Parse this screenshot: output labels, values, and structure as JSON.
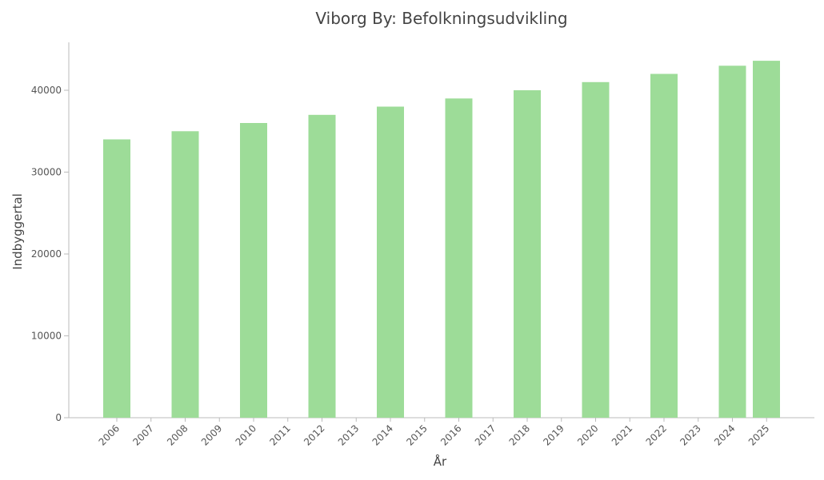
{
  "chart_data": {
    "type": "bar",
    "title": "Viborg By: Befolkningsudvikling",
    "xlabel": "År",
    "ylabel": "Indbyggertal",
    "categories": [
      "2006",
      "2007",
      "2008",
      "2009",
      "2010",
      "2011",
      "2012",
      "2013",
      "2014",
      "2015",
      "2016",
      "2017",
      "2018",
      "2019",
      "2020",
      "2021",
      "2022",
      "2023",
      "2024",
      "2025"
    ],
    "bar_years": [
      "2006",
      "2008",
      "2010",
      "2012",
      "2014",
      "2016",
      "2018",
      "2020",
      "2022",
      "2024",
      "2025"
    ],
    "bar_values": [
      34000,
      35000,
      36000,
      37000,
      38000,
      39000,
      40000,
      41000,
      42000,
      43000,
      43600
    ],
    "yticks": [
      0,
      10000,
      20000,
      30000,
      40000
    ],
    "ylim": [
      0,
      46000
    ],
    "bar_color": "#9ddc98",
    "grid": false,
    "legend": "none"
  }
}
